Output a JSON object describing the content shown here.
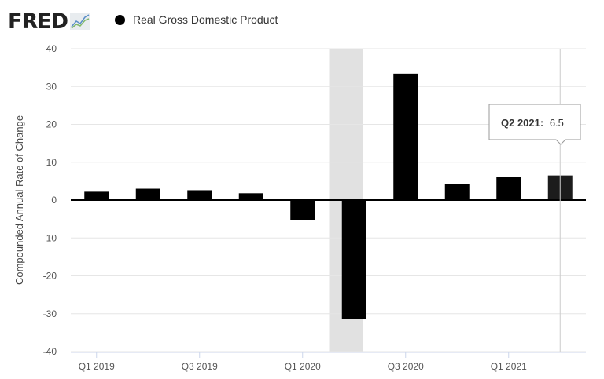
{
  "header": {
    "logo_text": "FRED",
    "legend_label": "Real Gross Domestic Product"
  },
  "chart_data": {
    "type": "bar",
    "title": "",
    "ylabel": "Compounded Annual Rate of Change",
    "xlabel": "",
    "ylim": [
      -40,
      40
    ],
    "yticks": [
      40,
      30,
      20,
      10,
      0,
      -10,
      -20,
      -30,
      -40
    ],
    "grid": true,
    "categories": [
      "Q1 2019",
      "Q2 2019",
      "Q3 2019",
      "Q4 2019",
      "Q1 2020",
      "Q2 2020",
      "Q3 2020",
      "Q4 2020",
      "Q1 2021",
      "Q2 2021"
    ],
    "xtick_labels": [
      "Q1 2019",
      "",
      "Q3 2019",
      "",
      "Q1 2020",
      "",
      "Q3 2020",
      "",
      "Q1 2021",
      ""
    ],
    "series": [
      {
        "name": "Real Gross Domestic Product",
        "color": "#000000",
        "values": [
          2.2,
          3.0,
          2.6,
          1.8,
          -5.3,
          -31.4,
          33.4,
          4.3,
          6.2,
          6.5
        ]
      }
    ],
    "recession_shading": {
      "from": "Q2 2020",
      "to": "Q2 2020",
      "color": "#e1e1e1"
    },
    "tooltip": {
      "label": "Q2 2021:",
      "value": "6.5",
      "category": "Q2 2021"
    }
  }
}
